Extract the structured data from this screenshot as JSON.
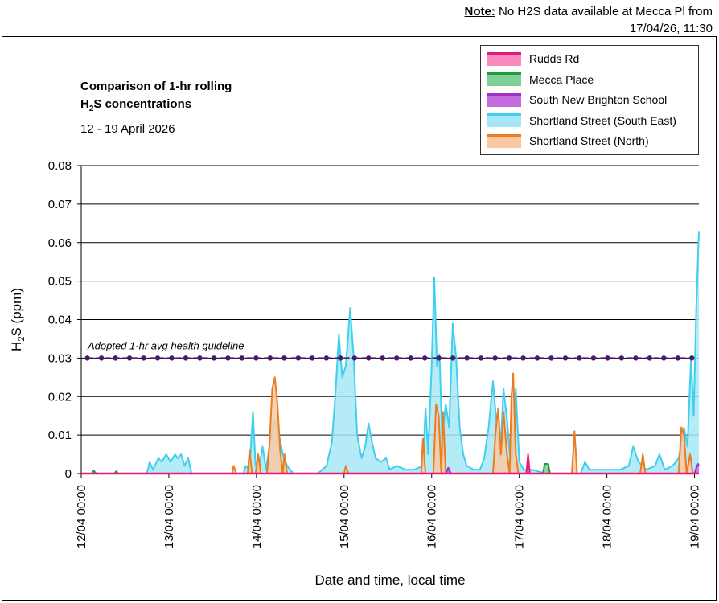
{
  "note": {
    "label": "Note:",
    "text": "No H2S data available at Mecca Pl from 17/04/26, 11:30"
  },
  "chart_data": {
    "type": "area",
    "title_line1": "Comparison of 1-hr rolling",
    "title_line2_main": "H",
    "title_line2_sub": "2",
    "title_line2_rest": "S concentrations",
    "date_range": "12 - 19 April 2026",
    "ylabel_main": "H",
    "ylabel_sub": "2",
    "ylabel_rest": "S (ppm)",
    "xlabel": "Date and time, local time",
    "ylim": [
      0,
      0.08
    ],
    "yticks": [
      0,
      0.01,
      0.02,
      0.03,
      0.04,
      0.05,
      0.06,
      0.07,
      0.08
    ],
    "ytick_labels": [
      "0",
      "0.01",
      "0.02",
      "0.03",
      "0.04",
      "0.05",
      "0.06",
      "0.07",
      "0.08"
    ],
    "xlim": [
      0,
      7.05
    ],
    "xticks": [
      0,
      1,
      2,
      3,
      4,
      5,
      6,
      7
    ],
    "xtick_labels": [
      "12/04 00:00",
      "13/04 00:00",
      "14/04 00:00",
      "15/04 00:00",
      "16/04 00:00",
      "17/04 00:00",
      "18/04 00:00",
      "19/04 00:00"
    ],
    "grid": true,
    "legend_position": "top-right",
    "guideline": {
      "label": "Adopted 1-hr avg health guideline",
      "value": 0.03,
      "color": "#4a1a6b"
    },
    "series": [
      {
        "name": "Shortland Street (South East)",
        "line_color": "#3fcfef",
        "fill_color": "#a8e6f6",
        "points": [
          [
            0,
            0
          ],
          [
            0.75,
            0
          ],
          [
            0.78,
            0.003
          ],
          [
            0.82,
            0.001
          ],
          [
            0.88,
            0.004
          ],
          [
            0.92,
            0.003
          ],
          [
            0.97,
            0.005
          ],
          [
            1.02,
            0.003
          ],
          [
            1.07,
            0.005
          ],
          [
            1.1,
            0.004
          ],
          [
            1.14,
            0.005
          ],
          [
            1.18,
            0.002
          ],
          [
            1.22,
            0.004
          ],
          [
            1.26,
            0
          ],
          [
            1.85,
            0
          ],
          [
            1.88,
            0.002
          ],
          [
            1.92,
            0.001
          ],
          [
            1.96,
            0.016
          ],
          [
            1.99,
            0.002
          ],
          [
            2.03,
            0.001
          ],
          [
            2.07,
            0.007
          ],
          [
            2.11,
            0.001
          ],
          [
            2.16,
            0.009
          ],
          [
            2.2,
            0.014
          ],
          [
            2.25,
            0.011
          ],
          [
            2.3,
            0.005
          ],
          [
            2.35,
            0.002
          ],
          [
            2.42,
            0
          ],
          [
            2.7,
            0
          ],
          [
            2.8,
            0.002
          ],
          [
            2.86,
            0.008
          ],
          [
            2.9,
            0.02
          ],
          [
            2.94,
            0.036
          ],
          [
            2.98,
            0.025
          ],
          [
            3.02,
            0.028
          ],
          [
            3.07,
            0.043
          ],
          [
            3.11,
            0.03
          ],
          [
            3.15,
            0.01
          ],
          [
            3.2,
            0.004
          ],
          [
            3.24,
            0.007
          ],
          [
            3.28,
            0.013
          ],
          [
            3.32,
            0.008
          ],
          [
            3.36,
            0.004
          ],
          [
            3.42,
            0.003
          ],
          [
            3.48,
            0.004
          ],
          [
            3.52,
            0.001
          ],
          [
            3.6,
            0.002
          ],
          [
            3.7,
            0.001
          ],
          [
            3.8,
            0.001
          ],
          [
            3.9,
            0.002
          ],
          [
            3.93,
            0.017
          ],
          [
            3.96,
            0.005
          ],
          [
            4,
            0.028
          ],
          [
            4.03,
            0.051
          ],
          [
            4.06,
            0.028
          ],
          [
            4.09,
            0.031
          ],
          [
            4.12,
            0.009
          ],
          [
            4.16,
            0.018
          ],
          [
            4.2,
            0.012
          ],
          [
            4.24,
            0.039
          ],
          [
            4.28,
            0.03
          ],
          [
            4.32,
            0.012
          ],
          [
            4.36,
            0.005
          ],
          [
            4.4,
            0.002
          ],
          [
            4.48,
            0.001
          ],
          [
            4.55,
            0.001
          ],
          [
            4.6,
            0.004
          ],
          [
            4.65,
            0.012
          ],
          [
            4.7,
            0.024
          ],
          [
            4.74,
            0.013
          ],
          [
            4.78,
            0.004
          ],
          [
            4.82,
            0.022
          ],
          [
            4.86,
            0.014
          ],
          [
            4.9,
            0.003
          ],
          [
            4.93,
            0.006
          ],
          [
            4.96,
            0.022
          ],
          [
            5,
            0.003
          ],
          [
            5.05,
            0.001
          ],
          [
            5.15,
            0.001
          ],
          [
            5.3,
            0
          ],
          [
            5.7,
            0
          ],
          [
            5.75,
            0.003
          ],
          [
            5.8,
            0.001
          ],
          [
            5.95,
            0.001
          ],
          [
            6.15,
            0.001
          ],
          [
            6.25,
            0.002
          ],
          [
            6.3,
            0.007
          ],
          [
            6.36,
            0.003
          ],
          [
            6.45,
            0.001
          ],
          [
            6.55,
            0.002
          ],
          [
            6.6,
            0.005
          ],
          [
            6.66,
            0.001
          ],
          [
            6.75,
            0.002
          ],
          [
            6.82,
            0.004
          ],
          [
            6.88,
            0.012
          ],
          [
            6.92,
            0.007
          ],
          [
            6.96,
            0.03
          ],
          [
            6.99,
            0.015
          ],
          [
            7.02,
            0.043
          ],
          [
            7.05,
            0.063
          ]
        ]
      },
      {
        "name": "Shortland Street (North)",
        "line_color": "#ec7c1e",
        "fill_color": "#f9c9a4",
        "points": [
          [
            0,
            0
          ],
          [
            1.72,
            0
          ],
          [
            1.74,
            0.002
          ],
          [
            1.77,
            0
          ],
          [
            1.9,
            0
          ],
          [
            1.92,
            0.006
          ],
          [
            1.95,
            0
          ],
          [
            1.99,
            0
          ],
          [
            2.02,
            0.005
          ],
          [
            2.05,
            0
          ],
          [
            2.12,
            0
          ],
          [
            2.15,
            0.008
          ],
          [
            2.18,
            0.022
          ],
          [
            2.21,
            0.025
          ],
          [
            2.24,
            0.018
          ],
          [
            2.27,
            0.006
          ],
          [
            2.3,
            0
          ],
          [
            2.32,
            0.005
          ],
          [
            2.35,
            0
          ],
          [
            3,
            0
          ],
          [
            3.02,
            0.002
          ],
          [
            3.05,
            0
          ],
          [
            3.88,
            0
          ],
          [
            3.9,
            0.009
          ],
          [
            3.93,
            0
          ],
          [
            4.02,
            0
          ],
          [
            4.05,
            0.018
          ],
          [
            4.08,
            0.015
          ],
          [
            4.11,
            0
          ],
          [
            4.13,
            0.016
          ],
          [
            4.16,
            0
          ],
          [
            4.7,
            0
          ],
          [
            4.73,
            0.011
          ],
          [
            4.76,
            0.017
          ],
          [
            4.79,
            0.005
          ],
          [
            4.82,
            0.016
          ],
          [
            4.86,
            0.005
          ],
          [
            4.89,
            0
          ],
          [
            4.91,
            0.02
          ],
          [
            4.93,
            0.026
          ],
          [
            4.96,
            0.005
          ],
          [
            4.99,
            0
          ],
          [
            5.6,
            0
          ],
          [
            5.63,
            0.011
          ],
          [
            5.66,
            0
          ],
          [
            6.38,
            0
          ],
          [
            6.41,
            0.005
          ],
          [
            6.44,
            0
          ],
          [
            6.82,
            0
          ],
          [
            6.85,
            0.012
          ],
          [
            6.88,
            0.01
          ],
          [
            6.91,
            0
          ],
          [
            6.95,
            0.005
          ],
          [
            6.98,
            0
          ],
          [
            7.05,
            0
          ]
        ]
      },
      {
        "name": "South New Brighton School",
        "line_color": "#a030c8",
        "fill_color": "#c46be0",
        "points": [
          [
            0,
            0
          ],
          [
            4.16,
            0
          ],
          [
            4.19,
            0.0015
          ],
          [
            4.22,
            0
          ],
          [
            7.0,
            0
          ],
          [
            7.02,
            0.0015
          ],
          [
            7.04,
            0.0025
          ],
          [
            7.05,
            0.002
          ]
        ]
      },
      {
        "name": "Mecca Place",
        "line_color": "#1e9a3a",
        "fill_color": "#7fcf98",
        "points": [
          [
            0,
            0
          ],
          [
            0.12,
            0
          ],
          [
            0.14,
            0.0008
          ],
          [
            0.17,
            0
          ],
          [
            0.38,
            0
          ],
          [
            0.4,
            0.0006
          ],
          [
            0.42,
            0
          ],
          [
            5.27,
            0
          ],
          [
            5.29,
            0.0025
          ],
          [
            5.33,
            0.0025
          ],
          [
            5.35,
            0
          ],
          [
            5.45,
            0
          ]
        ]
      },
      {
        "name": "Rudds Rd",
        "line_color": "#e8187e",
        "fill_color": "#f78bbd",
        "points": [
          [
            0,
            0
          ],
          [
            5.08,
            0
          ],
          [
            5.1,
            0.005
          ],
          [
            5.12,
            0
          ],
          [
            7.05,
            0
          ]
        ]
      }
    ],
    "legend_order": [
      "Rudds Rd",
      "Mecca Place",
      "South New Brighton School",
      "Shortland Street (South East)",
      "Shortland Street (North)"
    ]
  }
}
